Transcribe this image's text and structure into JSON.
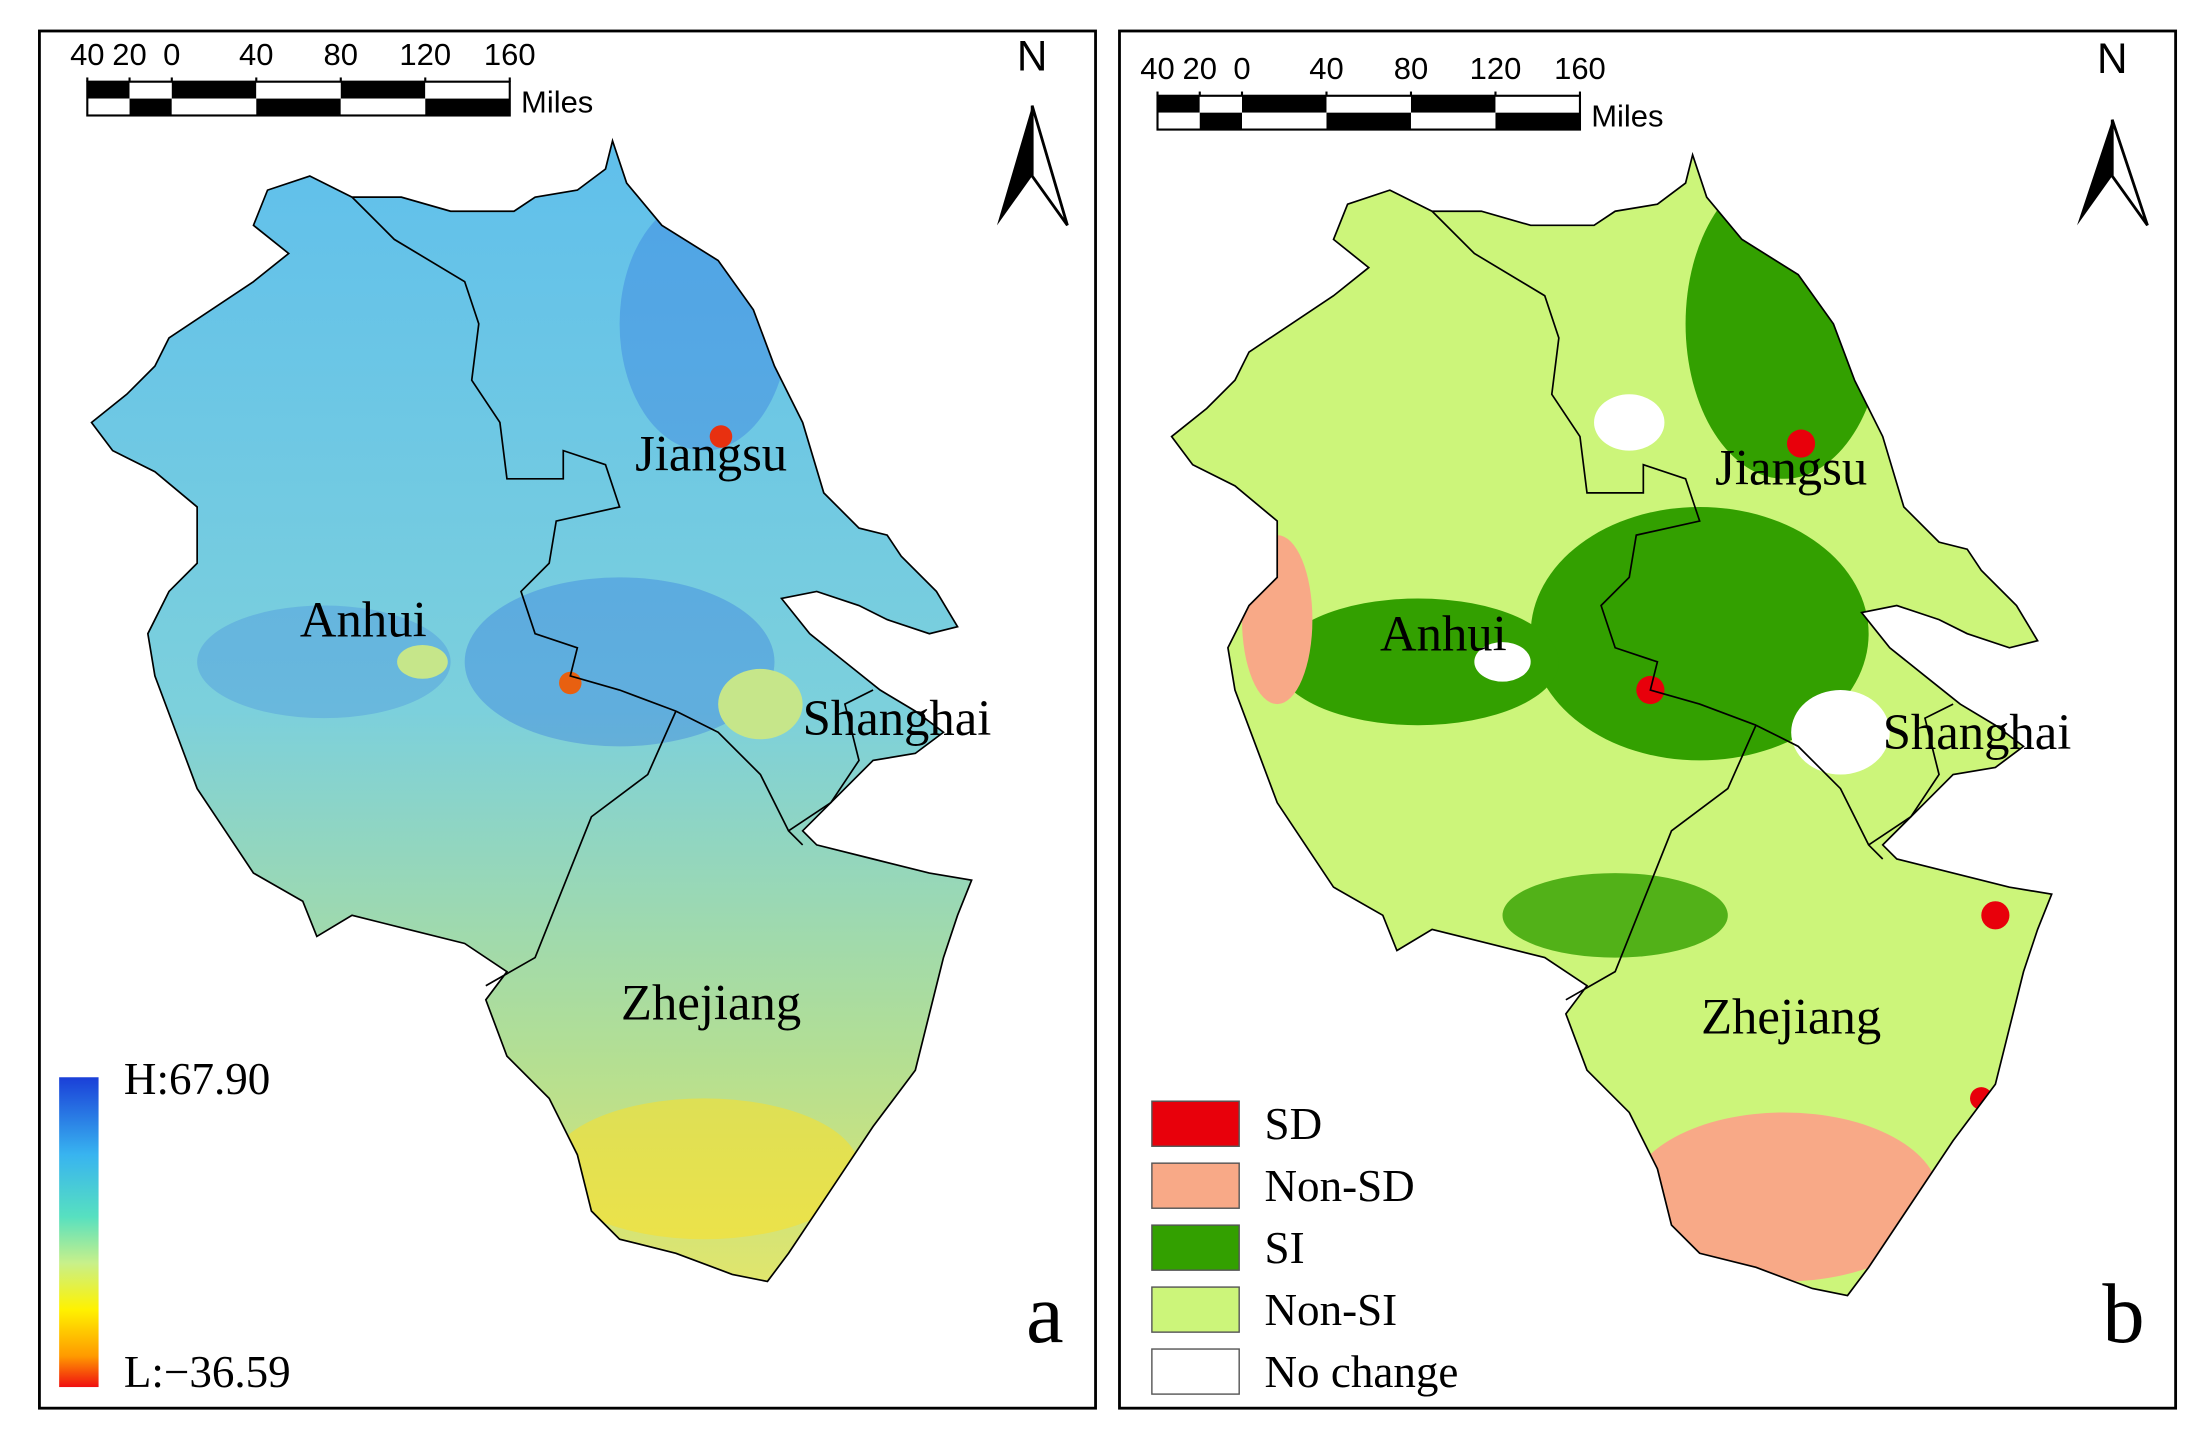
{
  "panels": [
    {
      "letter": "a",
      "north": "N",
      "scale_bar": {
        "unit": "Miles",
        "ticks": [
          {
            "value": -40,
            "label": "40"
          },
          {
            "value": -20,
            "label": "20"
          },
          0,
          40,
          80,
          120,
          160
        ]
      },
      "regions": [
        "Jiangsu",
        "Anhui",
        "Shanghai",
        "Zhejiang"
      ],
      "legend": {
        "high": "H:67.90",
        "low": "L:−36.59"
      }
    },
    {
      "letter": "b",
      "north": "N",
      "scale_bar": {
        "unit": "Miles",
        "ticks": [
          {
            "value": -40,
            "label": "40"
          },
          {
            "value": -20,
            "label": "20"
          },
          0,
          40,
          80,
          120,
          160
        ]
      },
      "regions": [
        "Jiangsu",
        "Anhui",
        "Shanghai",
        "Zhejiang"
      ],
      "legend": {
        "items": [
          {
            "label": "SD",
            "color": "#e8000b"
          },
          {
            "label": "Non-SD",
            "color": "#f8a987"
          },
          {
            "label": "SI",
            "color": "#33a000"
          },
          {
            "label": "Non-SI",
            "color": "#ccf57a"
          },
          {
            "label": "No change",
            "color": "#ffffff"
          }
        ]
      }
    }
  ]
}
